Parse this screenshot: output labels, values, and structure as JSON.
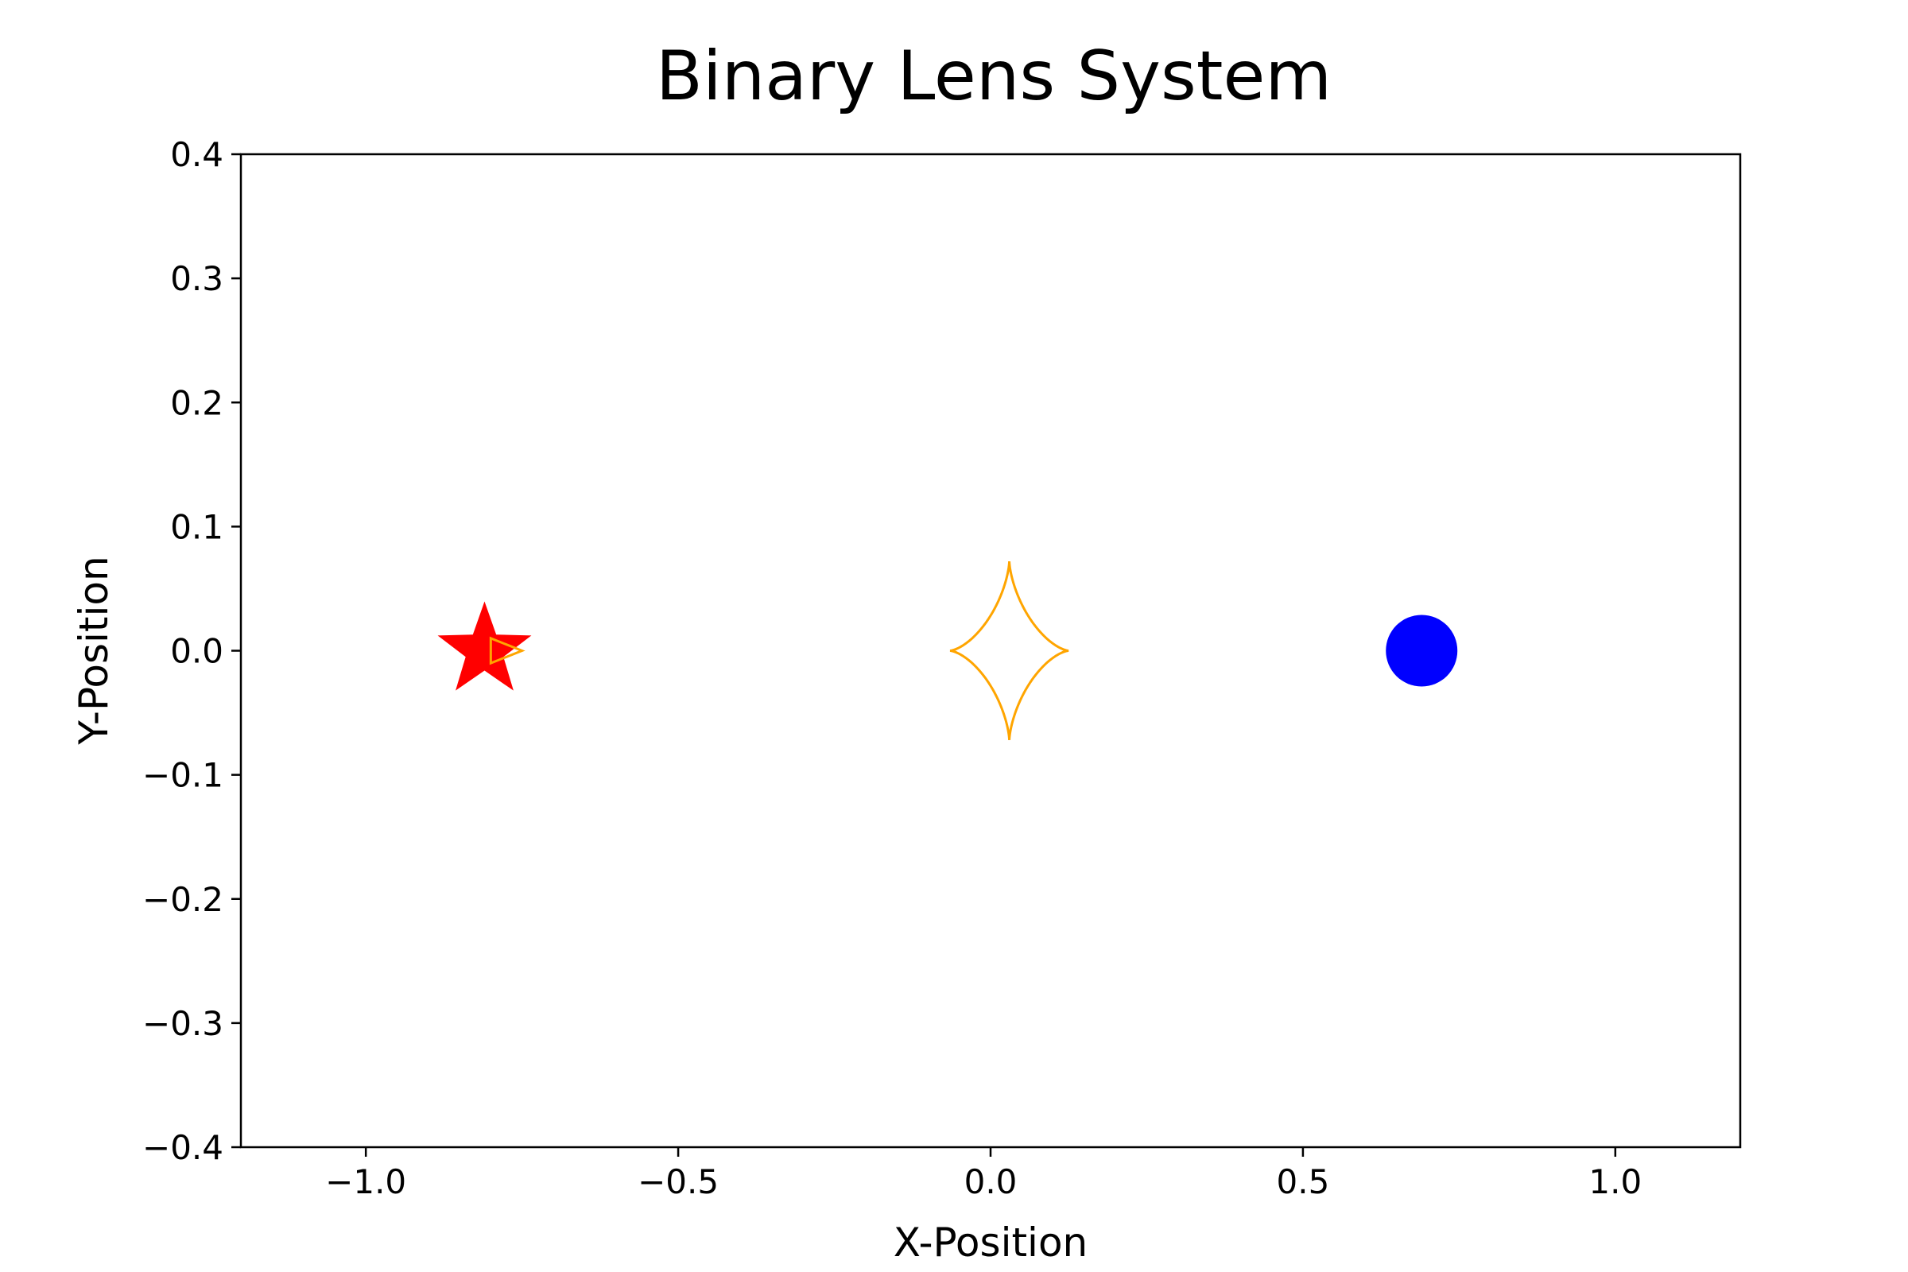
{
  "chart_data": {
    "type": "scatter",
    "title": "Binary Lens System",
    "xlabel": "X-Position",
    "ylabel": "Y-Position",
    "xlim": [
      -1.2,
      1.2
    ],
    "ylim": [
      -0.4,
      0.4
    ],
    "xticks": [
      {
        "value": -1.0,
        "label": "−1.0"
      },
      {
        "value": -0.5,
        "label": "−0.5"
      },
      {
        "value": 0.0,
        "label": "0.0"
      },
      {
        "value": 0.5,
        "label": "0.5"
      },
      {
        "value": 1.0,
        "label": "1.0"
      }
    ],
    "yticks": [
      {
        "value": -0.4,
        "label": "−0.4"
      },
      {
        "value": -0.3,
        "label": "−0.3"
      },
      {
        "value": -0.2,
        "label": "−0.2"
      },
      {
        "value": -0.1,
        "label": "−0.1"
      },
      {
        "value": 0.0,
        "label": "0.0"
      },
      {
        "value": 0.1,
        "label": "0.1"
      },
      {
        "value": 0.2,
        "label": "0.2"
      },
      {
        "value": 0.3,
        "label": "0.3"
      },
      {
        "value": 0.4,
        "label": "0.4"
      }
    ],
    "grid": false,
    "series": [
      {
        "marker": "star",
        "color": "#ff0000",
        "x": [
          -0.81
        ],
        "y": [
          0.0
        ]
      },
      {
        "marker": "circle",
        "color": "#0000ff",
        "x": [
          0.69
        ],
        "y": [
          0.0
        ]
      }
    ],
    "caustics": [
      {
        "shape": "astroid",
        "color": "#ffa500",
        "center": [
          0.03,
          0.0
        ],
        "half_width_x": 0.095,
        "half_height_y": 0.072
      },
      {
        "shape": "triangle",
        "color": "#ffa500",
        "vertices": [
          [
            -0.8,
            0.01
          ],
          [
            -0.8,
            -0.01
          ],
          [
            -0.75,
            0.0
          ]
        ]
      }
    ]
  }
}
